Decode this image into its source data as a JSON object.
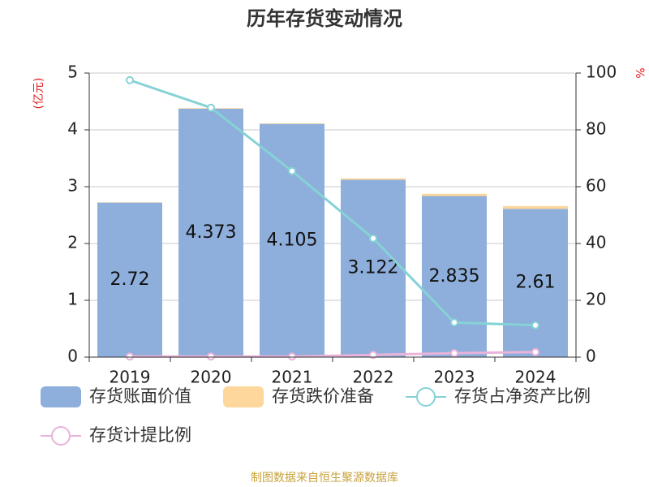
{
  "chart_data": {
    "type": "bar",
    "title": "历年存货变动情况",
    "y_label": "(亿元)",
    "y2_label": "%",
    "source": "制图数据来自恒生聚源数据库",
    "categories": [
      "2019",
      "2020",
      "2021",
      "2022",
      "2023",
      "2024"
    ],
    "series": [
      {
        "name": "存货账面价值",
        "color": "#8eaedb",
        "type": "bar",
        "values": [
          2.72,
          4.373,
          4.105,
          3.122,
          2.835,
          2.61
        ]
      },
      {
        "name": "存货跌价准备",
        "color": "#fdd79b",
        "type": "bar",
        "values": [
          0.005,
          0.01,
          0.01,
          0.025,
          0.04,
          0.05
        ]
      },
      {
        "name": "存货占净资产比例",
        "color": "#86d2d6",
        "type": "line",
        "axis": "y2",
        "values": [
          97.5,
          87.8,
          65.5,
          41.8,
          12.2,
          11.2
        ]
      },
      {
        "name": "存货计提比例",
        "color": "#e9b3da",
        "type": "line",
        "axis": "y2",
        "values": [
          0.2,
          0.2,
          0.2,
          0.8,
          1.4,
          1.8
        ]
      }
    ],
    "ylim": [
      0,
      5
    ],
    "yticks": [
      0,
      1,
      2,
      3,
      4,
      5
    ],
    "y2lim": [
      0,
      100
    ],
    "y2ticks": [
      0,
      20,
      40,
      60,
      80,
      100
    ],
    "grid": true
  }
}
